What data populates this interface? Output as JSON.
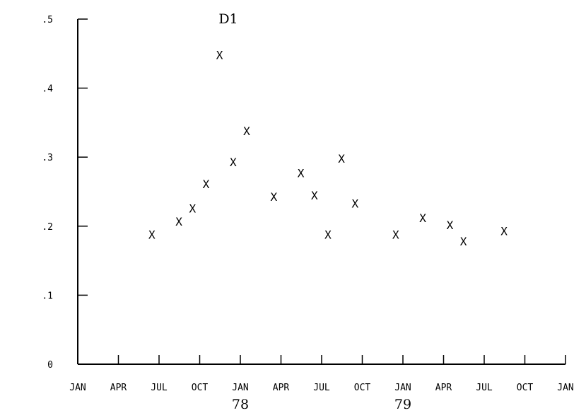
{
  "chart_data": {
    "type": "scatter",
    "title": "D1",
    "xlabel": "",
    "ylabel": "",
    "marker": "X",
    "colors": {
      "ink": "#000000",
      "background": "#ffffff"
    },
    "grid": false,
    "xlim": [
      "1977-01",
      "1980-01"
    ],
    "ylim": [
      0,
      0.5
    ],
    "x_ticks": [
      {
        "value": "1977-01",
        "label": "JAN"
      },
      {
        "value": "1977-04",
        "label": "APR"
      },
      {
        "value": "1977-07",
        "label": "JUL"
      },
      {
        "value": "1977-10",
        "label": "OCT"
      },
      {
        "value": "1978-01",
        "label": "JAN"
      },
      {
        "value": "1978-04",
        "label": "APR"
      },
      {
        "value": "1978-07",
        "label": "JUL"
      },
      {
        "value": "1978-10",
        "label": "OCT"
      },
      {
        "value": "1979-01",
        "label": "JAN"
      },
      {
        "value": "1979-04",
        "label": "APR"
      },
      {
        "value": "1979-07",
        "label": "JUL"
      },
      {
        "value": "1979-10",
        "label": "OCT"
      },
      {
        "value": "1980-01",
        "label": "JAN"
      }
    ],
    "year_labels": [
      {
        "value": "1978-01",
        "label": "78"
      },
      {
        "value": "1979-01",
        "label": "79"
      }
    ],
    "y_ticks": [
      {
        "value": 0,
        "label": "0"
      },
      {
        "value": 0.1,
        "label": ".1"
      },
      {
        "value": 0.2,
        "label": ".2"
      },
      {
        "value": 0.3,
        "label": ".3"
      },
      {
        "value": 0.4,
        "label": ".4"
      },
      {
        "value": 0.5,
        "label": ".5"
      }
    ],
    "points": [
      {
        "x": "1977-06-15",
        "y": 0.187
      },
      {
        "x": "1977-08-15",
        "y": 0.206
      },
      {
        "x": "1977-09-15",
        "y": 0.225
      },
      {
        "x": "1977-10-15",
        "y": 0.26
      },
      {
        "x": "1977-11-15",
        "y": 0.447
      },
      {
        "x": "1977-12-15",
        "y": 0.292
      },
      {
        "x": "1978-01-15",
        "y": 0.337
      },
      {
        "x": "1978-03-15",
        "y": 0.242
      },
      {
        "x": "1978-05-15",
        "y": 0.276
      },
      {
        "x": "1978-06-15",
        "y": 0.244
      },
      {
        "x": "1978-07-15",
        "y": 0.187
      },
      {
        "x": "1978-08-15",
        "y": 0.297
      },
      {
        "x": "1978-09-15",
        "y": 0.232
      },
      {
        "x": "1978-12-15",
        "y": 0.187
      },
      {
        "x": "1979-02-15",
        "y": 0.211
      },
      {
        "x": "1979-04-15",
        "y": 0.201
      },
      {
        "x": "1979-05-15",
        "y": 0.177
      },
      {
        "x": "1979-08-15",
        "y": 0.192
      }
    ]
  }
}
